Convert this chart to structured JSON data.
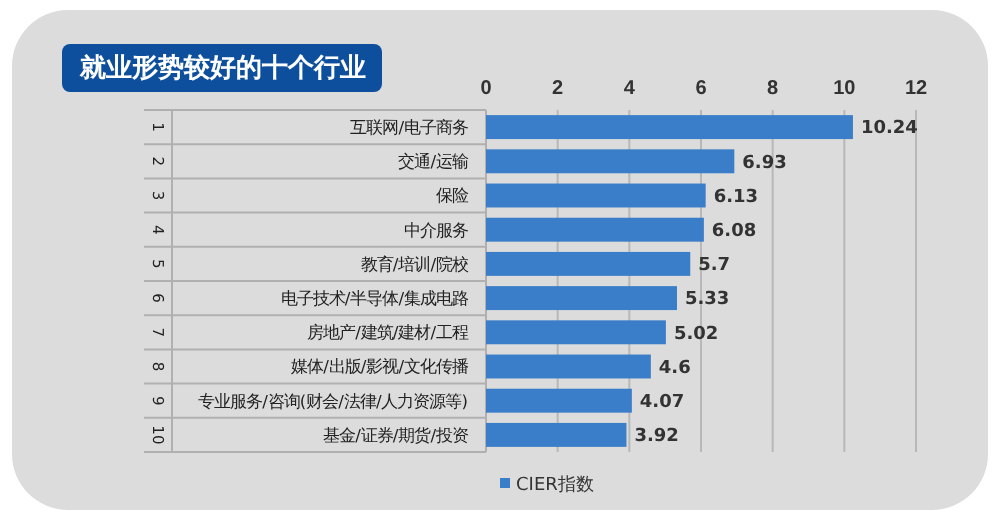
{
  "chart_data": {
    "type": "bar",
    "orientation": "horizontal",
    "title": "就业形势较好的十个行业",
    "categories": [
      "互联网/电子商务",
      "交通/运输",
      "保险",
      "中介服务",
      "教育/培训/院校",
      "电子技术/半导体/集成电路",
      "房地产/建筑/建材/工程",
      "媒体/出版/影视/文化传播",
      "专业服务/咨询(财会/法律/人力资源等)",
      "基金/证券/期货/投资"
    ],
    "series": [
      {
        "name": "CIER指数",
        "color": "#3a7dc9",
        "values": [
          10.24,
          6.93,
          6.13,
          6.08,
          5.7,
          5.33,
          5.02,
          4.6,
          4.07,
          3.92
        ]
      }
    ],
    "xlim": [
      0,
      12
    ],
    "xticks": [
      0,
      2,
      4,
      6,
      8,
      10,
      12
    ],
    "grid": "x",
    "legend": "bottom",
    "data_labels": true,
    "annotations": [
      "1",
      "2",
      "3",
      "4",
      "5",
      "6",
      "7",
      "8",
      "9",
      "10"
    ]
  }
}
